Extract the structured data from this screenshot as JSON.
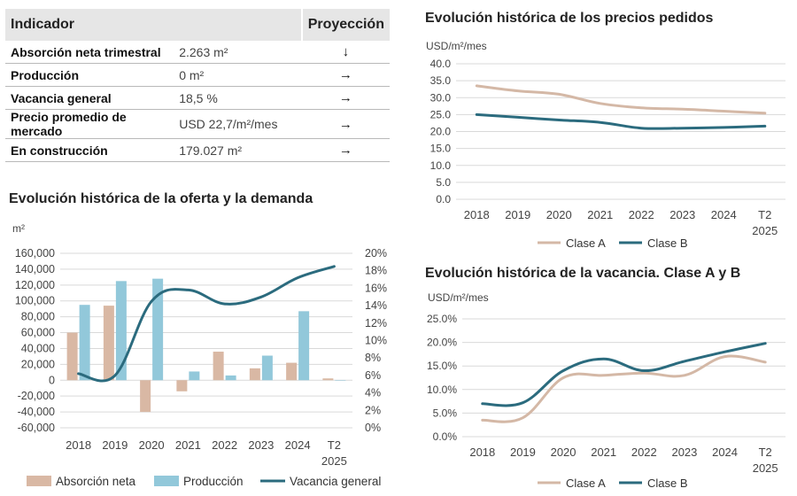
{
  "table": {
    "header_indicator": "Indicador",
    "header_projection": "Proyección",
    "rows": [
      {
        "label": "Absorción neta trimestral",
        "value": "2.263 m²",
        "arrow": "↓",
        "arrow_name": "arrow-down-icon"
      },
      {
        "label": "Producción",
        "value": "0 m²",
        "arrow": "→",
        "arrow_name": "arrow-right-icon"
      },
      {
        "label": "Vacancia general",
        "value": "18,5 %",
        "arrow": "→",
        "arrow_name": "arrow-right-icon"
      },
      {
        "label": "Precio promedio de mercado",
        "value": "USD 22,7/m²/mes",
        "arrow": "→",
        "arrow_name": "arrow-right-icon"
      },
      {
        "label": "En construcción",
        "value": "179.027 m²",
        "arrow": "→",
        "arrow_name": "arrow-right-icon"
      }
    ]
  },
  "colors": {
    "clase_a": "#d4b8a6",
    "clase_b": "#2b6b7e",
    "absorcion": "#d9b8a4",
    "produccion": "#92c8da",
    "vacancia": "#2b6b7e",
    "grid": "#d9d9d9",
    "axis_text": "#444444"
  },
  "chart_data": [
    {
      "id": "oferta-demanda",
      "type": "bar",
      "title": "Evolución histórica de la oferta y la demanda",
      "ylabel": "m²",
      "ylim": [
        -60000,
        160000
      ],
      "y_ticks": [
        "160,000",
        "140,000",
        "120,000",
        "100,000",
        "80,000",
        "60,000",
        "40,000",
        "20,000",
        "0",
        "-20,000",
        "-40,000",
        "-60,000"
      ],
      "y2lim": [
        0,
        20
      ],
      "y2_ticks": [
        "20%",
        "18%",
        "16%",
        "14%",
        "12%",
        "10%",
        "8%",
        "6%",
        "4%",
        "2%",
        "0%"
      ],
      "categories": [
        "2018",
        "2019",
        "2020",
        "2021",
        "2022",
        "2023",
        "2024",
        "T2 2025"
      ],
      "x_labels": [
        [
          "2018"
        ],
        [
          "2019"
        ],
        [
          "2020"
        ],
        [
          "2021"
        ],
        [
          "2022"
        ],
        [
          "2023"
        ],
        [
          "2024"
        ],
        [
          "T2",
          "2025"
        ]
      ],
      "series": [
        {
          "name": "Absorción neta",
          "kind": "bar",
          "values": [
            60000,
            94000,
            -40000,
            -14000,
            36000,
            15000,
            22000,
            2263
          ]
        },
        {
          "name": "Producción",
          "kind": "bar",
          "values": [
            95000,
            125000,
            128000,
            11000,
            6000,
            31000,
            87000,
            0
          ]
        },
        {
          "name": "Vacancia general",
          "kind": "line",
          "axis": "right",
          "values": [
            6.2,
            6.0,
            14.5,
            15.8,
            14.2,
            15.0,
            17.2,
            18.5
          ]
        }
      ],
      "legend": "bottom"
    },
    {
      "id": "precios-pedidos",
      "type": "line",
      "title": "Evolución histórica de los precios pedidos",
      "ylabel": "USD/m²/mes",
      "ylim": [
        0,
        40
      ],
      "y_ticks": [
        "40.0",
        "35.0",
        "30.0",
        "25.0",
        "20.0",
        "15.0",
        "10.0",
        "5.0",
        "0.0"
      ],
      "categories": [
        "2018",
        "2019",
        "2020",
        "2021",
        "2022",
        "2023",
        "2024",
        "T2 2025"
      ],
      "x_labels": [
        [
          "2018"
        ],
        [
          "2019"
        ],
        [
          "2020"
        ],
        [
          "2021"
        ],
        [
          "2022"
        ],
        [
          "2023"
        ],
        [
          "2024"
        ],
        [
          "T2",
          "2025"
        ]
      ],
      "series": [
        {
          "name": "Clase A",
          "values": [
            33.5,
            32.0,
            31.0,
            28.3,
            27.0,
            26.6,
            26.0,
            25.4
          ]
        },
        {
          "name": "Clase B",
          "values": [
            25.0,
            24.2,
            23.4,
            22.7,
            21.0,
            21.0,
            21.2,
            21.6
          ]
        }
      ],
      "legend": "bottom"
    },
    {
      "id": "vacancia",
      "type": "line",
      "title": "Evolución histórica de la vacancia. Clase A y B",
      "ylabel": "USD/m²/mes",
      "ylim": [
        0,
        25
      ],
      "y_ticks": [
        "25.0%",
        "20.0%",
        "15.0%",
        "10.0%",
        "5.0%",
        "0.0%"
      ],
      "categories": [
        "2018",
        "2019",
        "2020",
        "2021",
        "2022",
        "2023",
        "2024",
        "T2 2025"
      ],
      "x_labels": [
        [
          "2018"
        ],
        [
          "2019"
        ],
        [
          "2020"
        ],
        [
          "2021"
        ],
        [
          "2022"
        ],
        [
          "2023"
        ],
        [
          "2024"
        ],
        [
          "T2",
          "2025"
        ]
      ],
      "series": [
        {
          "name": "Clase A",
          "values": [
            3.5,
            4.0,
            12.5,
            13.0,
            13.5,
            13.0,
            17.0,
            15.8
          ]
        },
        {
          "name": "Clase B",
          "values": [
            7.0,
            7.2,
            14.0,
            16.5,
            14.0,
            16.0,
            18.0,
            19.8
          ]
        }
      ],
      "legend": "bottom"
    }
  ]
}
